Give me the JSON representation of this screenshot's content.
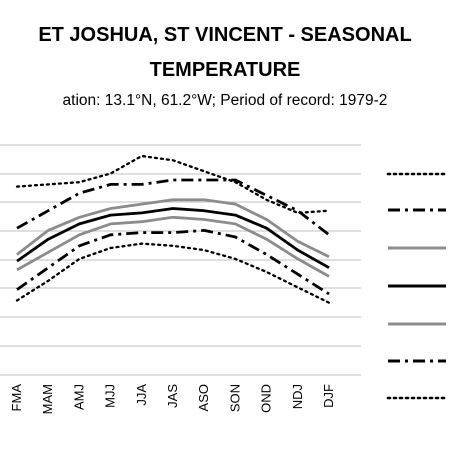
{
  "header": {
    "title_line1": "ET JOSHUA, ST VINCENT - SEASONAL",
    "title_line2": "TEMPERATURE",
    "subtitle": "ation: 13.1°N, 61.2°W; Period of record: 1979-2"
  },
  "chart_data": {
    "type": "line",
    "title": "ET JOSHUA, ST VINCENT - SEASONAL TEMPERATURE",
    "subtitle": "ation: 13.1°N, 61.2°W; Period of record: 1979-2",
    "categories": [
      "FMA",
      "MAM",
      "AMJ",
      "MJJ",
      "JJA",
      "JAS",
      "ASO",
      "SON",
      "OND",
      "NDJ",
      "DJF"
    ],
    "grid": true,
    "legend_position": "right",
    "series": [
      {
        "style": "dotted",
        "color": "#000000",
        "values": [
          29.6,
          29.7,
          29.8,
          30.2,
          31.0,
          30.8,
          30.3,
          29.8,
          29.0,
          28.4,
          28.5
        ]
      },
      {
        "style": "dashdot",
        "color": "#000000",
        "values": [
          27.7,
          28.5,
          29.3,
          29.7,
          29.7,
          29.9,
          29.9,
          29.9,
          29.2,
          28.5,
          27.4
        ]
      },
      {
        "style": "solid",
        "color": "#8c8c8c",
        "values": [
          26.5,
          27.6,
          28.2,
          28.6,
          28.8,
          29.0,
          29.0,
          28.8,
          28.1,
          27.1,
          26.4
        ]
      },
      {
        "style": "solid",
        "color": "#000000",
        "values": [
          26.2,
          27.2,
          27.9,
          28.3,
          28.4,
          28.6,
          28.5,
          28.3,
          27.7,
          26.7,
          25.9
        ]
      },
      {
        "style": "solid",
        "color": "#8c8c8c",
        "values": [
          25.8,
          26.6,
          27.4,
          27.9,
          28.0,
          28.2,
          28.1,
          27.9,
          27.2,
          26.3,
          25.5
        ]
      },
      {
        "style": "dashdot",
        "color": "#000000",
        "values": [
          24.9,
          25.9,
          26.9,
          27.4,
          27.5,
          27.5,
          27.6,
          27.3,
          26.5,
          25.6,
          24.7
        ]
      },
      {
        "style": "dotted",
        "color": "#000000",
        "values": [
          24.4,
          25.3,
          26.3,
          26.8,
          27.0,
          26.9,
          26.7,
          26.3,
          25.7,
          25.0,
          24.3
        ]
      }
    ],
    "ylim": [
      21.0,
      31.5
    ]
  }
}
